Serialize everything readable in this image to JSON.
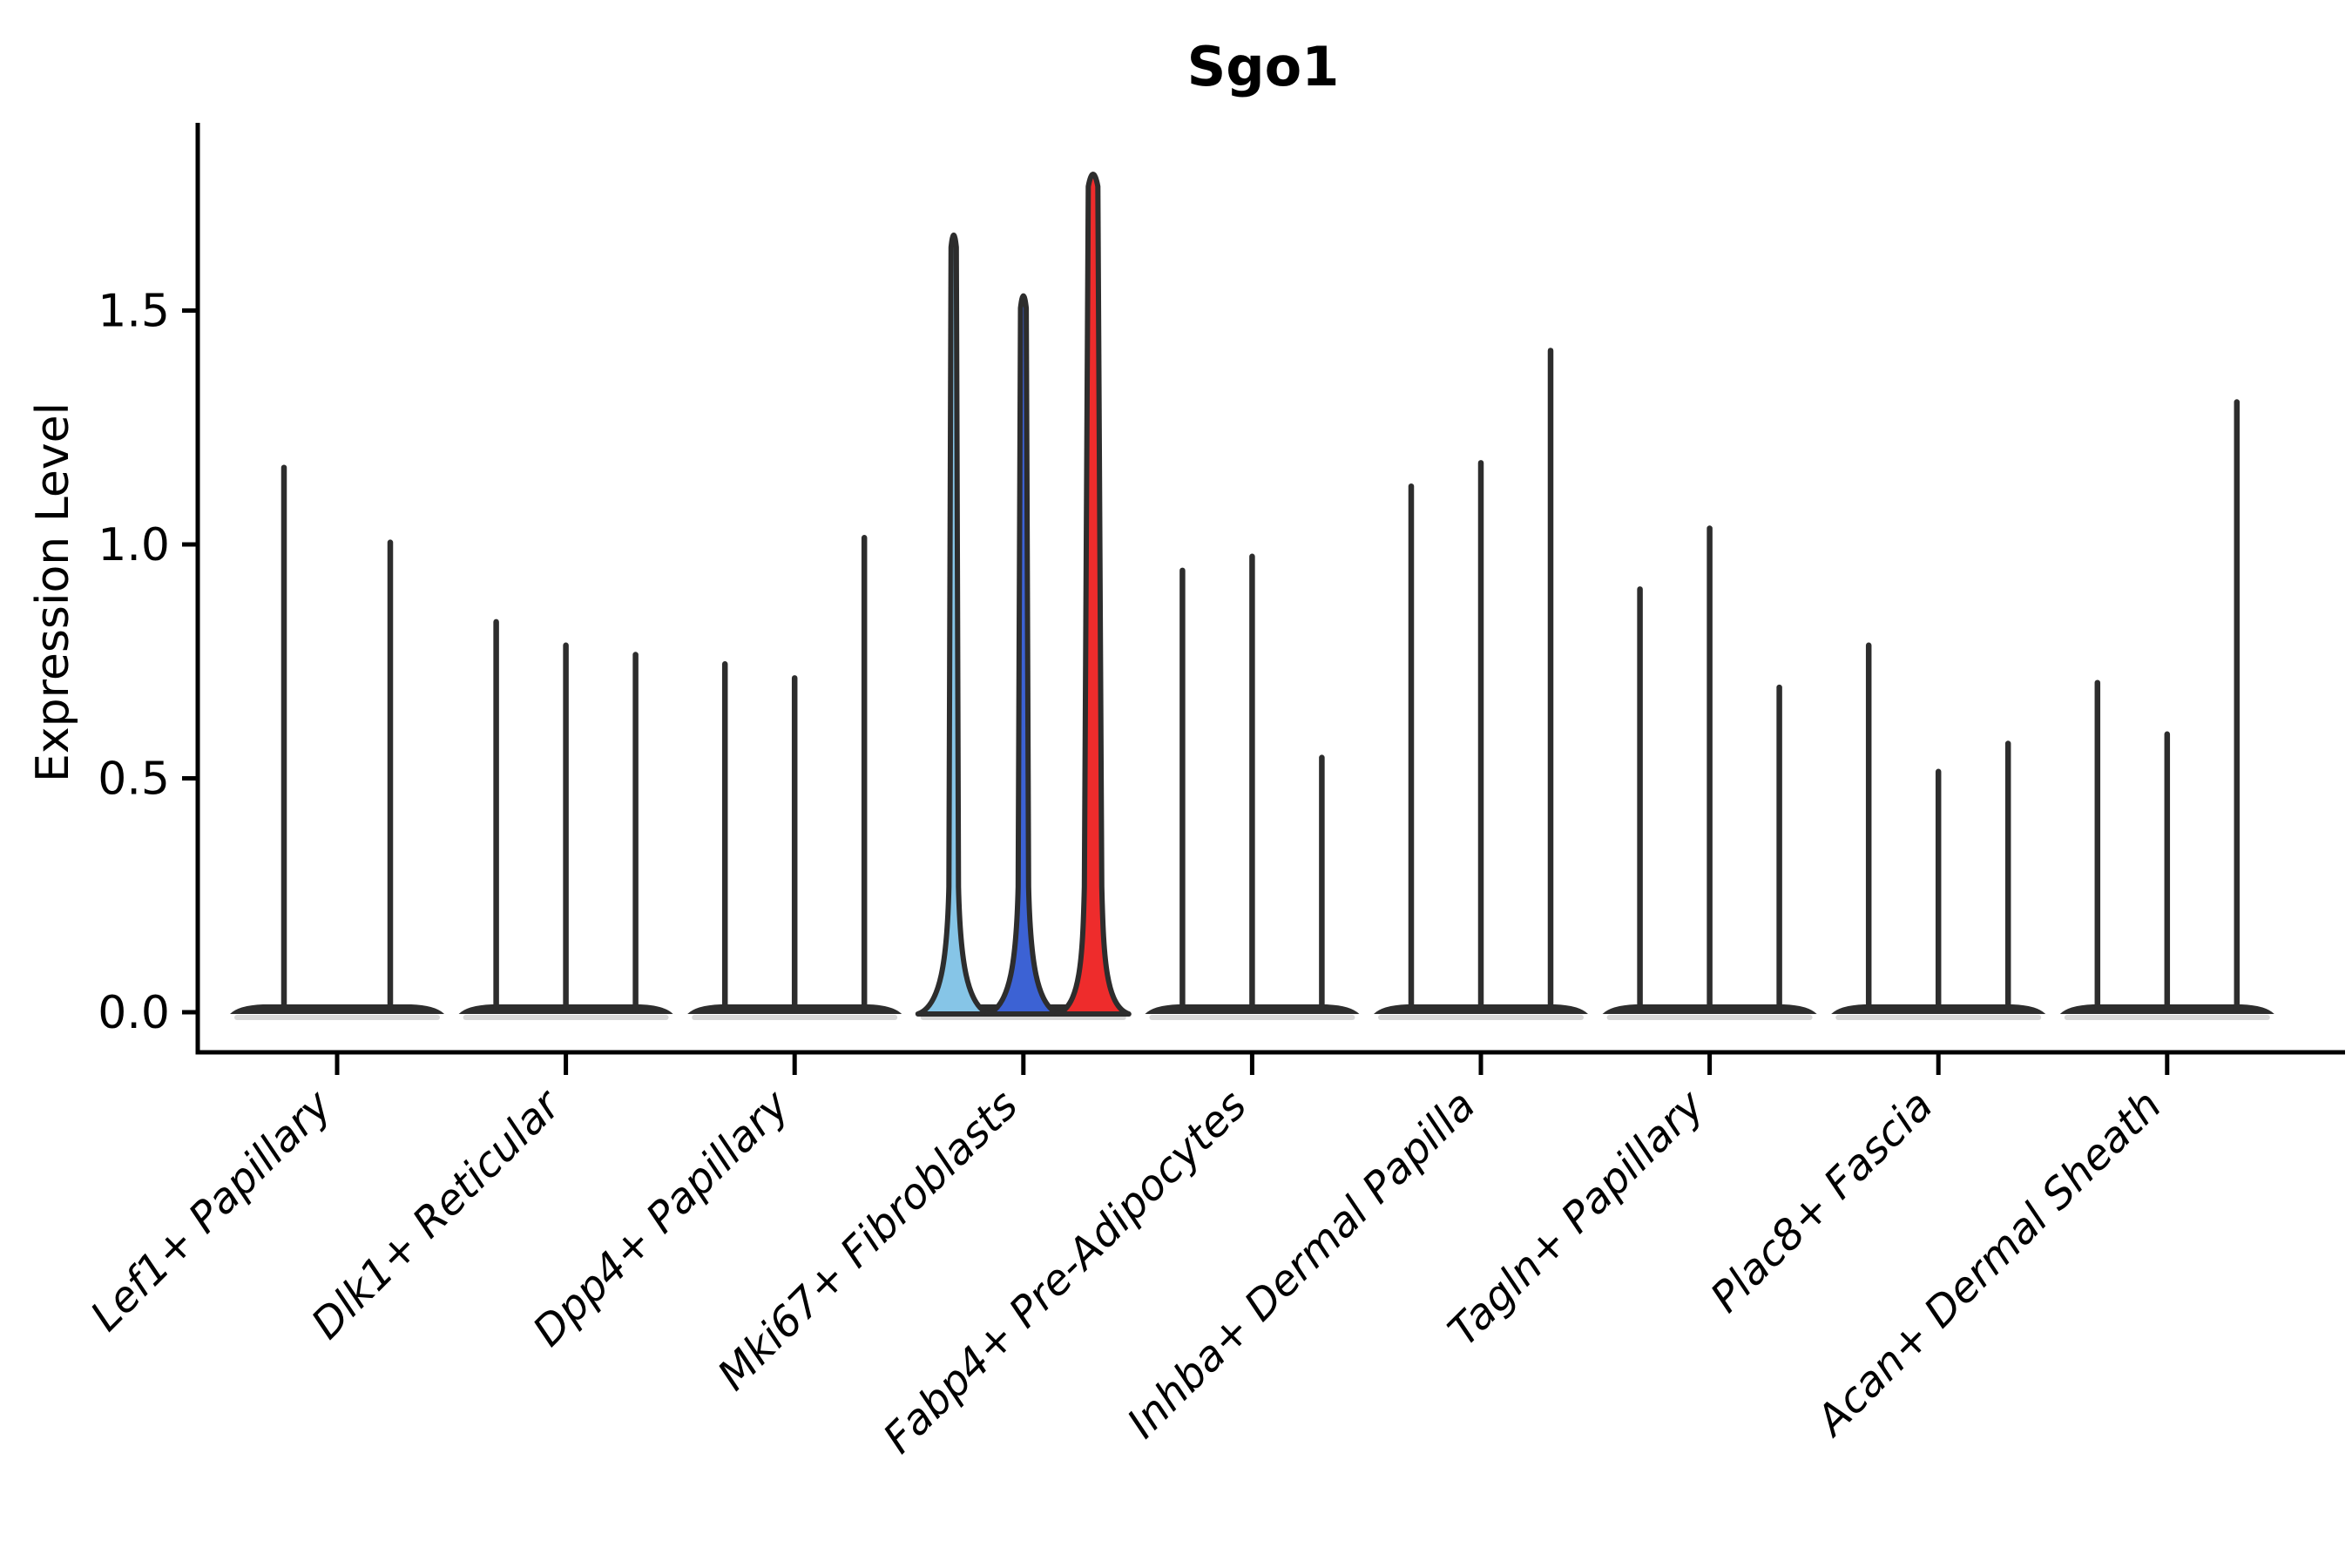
{
  "title": "Sgo1",
  "colors": {
    "axis": "#000000",
    "violin_stroke": "#2d2d2d",
    "sky_blue": "#86C5E7",
    "royal_blue": "#3C62D4",
    "red": "#EE2C2C",
    "background": "#ffffff",
    "base_shadow": "#aaaaaa"
  },
  "chart_data": {
    "type": "violin",
    "title": "Sgo1",
    "ylabel": "Expression Level",
    "xlabel": "",
    "ylim": [
      0,
      1.9
    ],
    "grid": false,
    "legend": "none",
    "yticks": [
      {
        "value": 0.0,
        "label": "0.0"
      },
      {
        "value": 0.5,
        "label": "0.5"
      },
      {
        "value": 1.0,
        "label": "1.0"
      },
      {
        "value": 1.5,
        "label": "1.5"
      }
    ],
    "groups": [
      {
        "label": "Lef1+ Papillary",
        "violins": [
          {
            "max": 1.17
          },
          {
            "max": 1.01
          }
        ]
      },
      {
        "label": "Dlk1+ Reticular",
        "violins": [
          {
            "max": 0.84
          },
          {
            "max": 0.79
          },
          {
            "max": 0.77
          }
        ]
      },
      {
        "label": "Dpp4+ Papillary",
        "violins": [
          {
            "max": 0.75
          },
          {
            "max": 0.72
          },
          {
            "max": 1.02
          }
        ]
      },
      {
        "label": "Mki67+ Fibroblasts",
        "violins": [
          {
            "max": 1.68,
            "fill": "#86C5E7",
            "stem_half_width": 5.5
          },
          {
            "max": 1.55,
            "fill": "#3C62D4",
            "stem_half_width": 6
          },
          {
            "max": 1.81,
            "fill": "#EE2C2C",
            "stem_half_width": 10
          }
        ]
      },
      {
        "label": "Fabp4+ Pre-Adipocytes",
        "violins": [
          {
            "max": 0.95
          },
          {
            "max": 0.98
          },
          {
            "max": 0.55
          }
        ]
      },
      {
        "label": "Inhba+ Dermal Papilla",
        "violins": [
          {
            "max": 1.13
          },
          {
            "max": 1.18
          },
          {
            "max": 1.42
          }
        ]
      },
      {
        "label": "Tagln+ Papillary",
        "violins": [
          {
            "max": 0.91
          },
          {
            "max": 1.04
          },
          {
            "max": 0.7
          }
        ]
      },
      {
        "label": "Plac8+ Fascia",
        "violins": [
          {
            "max": 0.79
          },
          {
            "max": 0.52
          },
          {
            "max": 0.58
          }
        ]
      },
      {
        "label": "Acan+ Dermal Sheath",
        "violins": [
          {
            "max": 0.71
          },
          {
            "max": 0.6
          },
          {
            "max": 1.31
          }
        ]
      }
    ]
  }
}
